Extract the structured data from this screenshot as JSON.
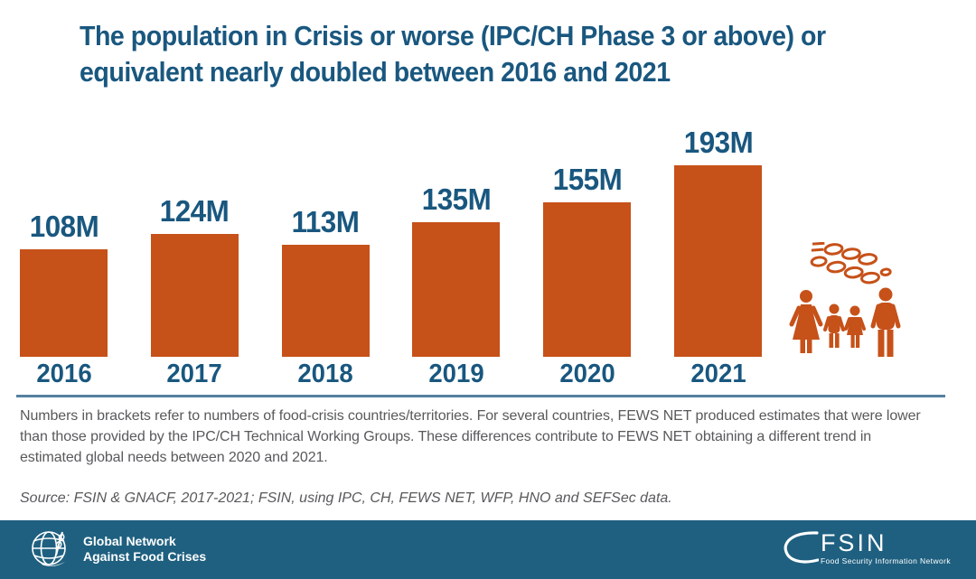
{
  "title": {
    "line1": "The population in Crisis or worse (IPC/CH Phase 3 or above) or",
    "line2": "equivalent nearly doubled between 2016 and 2021"
  },
  "chart_data": {
    "type": "bar",
    "title": "The population in Crisis or worse (IPC/CH Phase 3 or above) or equivalent nearly doubled between 2016 and 2021",
    "categories": [
      "2016",
      "2017",
      "2018",
      "2019",
      "2020",
      "2021"
    ],
    "values": [
      108,
      124,
      113,
      135,
      155,
      193
    ],
    "value_labels": [
      "108M",
      "124M",
      "113M",
      "135M",
      "155M",
      "193M"
    ],
    "value_suffix": "M",
    "xlabel": "",
    "ylabel": "",
    "legend": "none",
    "grid": "off",
    "bar_color": "#C65119",
    "label_color": "#19577F"
  },
  "notes": {
    "footnote": "Numbers in brackets refer to numbers of food-crisis countries/territories. For several countries, FEWS NET produced estimates that were lower than those provided by the IPC/CH Technical Working Groups. These differences contribute to FEWS NET obtaining a different trend in estimated global needs between 2020 and 2021.",
    "source": "Source: FSIN & GNACF, 2017-2021; FSIN, using IPC, CH, FEWS NET, WFP, HNO and SEFSec data."
  },
  "footer": {
    "left_logo": {
      "line1": "Global Network",
      "line2": "Against Food Crises"
    },
    "right_logo": {
      "name": "FSIN",
      "caption": "Food Security Information Network"
    }
  },
  "icons": {
    "wheat": "wheat-sprig-icon",
    "family": "family-of-four-icon",
    "globe": "globe-with-hand-and-wheat-icon",
    "swoosh": "fsin-swoosh-icon"
  },
  "colors": {
    "title_blue": "#19577F",
    "bar_orange": "#C65119",
    "footer_teal": "#1F6080",
    "divider_blue": "#54809F",
    "note_gray": "#58595B",
    "white": "#ffffff"
  }
}
